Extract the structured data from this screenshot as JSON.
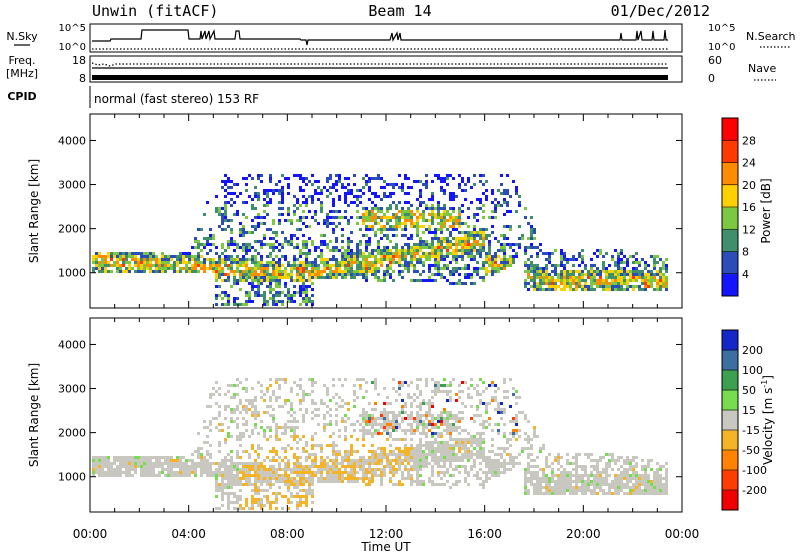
{
  "header": {
    "station": "Unwin (fitACF)",
    "beam": "Beam 14",
    "date": "01/Dec/2012"
  },
  "top_panel": {
    "nsky_label": "N.Sky",
    "nsearch_label": "N.Search",
    "left_ticks": [
      "10^5",
      "10^0"
    ],
    "right_ticks": [
      "10^5",
      "10^0"
    ],
    "freq_label_1": "Freq.",
    "freq_label_2": "[MHz]",
    "freq_ticks": [
      "18",
      "8"
    ],
    "nave_label": "Nave",
    "nave_ticks": [
      "60",
      "0"
    ],
    "cpid_label": "CPID",
    "cpid_value": "normal (fast stereo) 153 RF"
  },
  "chart_data": [
    {
      "type": "heatmap",
      "name": "power",
      "ylabel": "Slant Range [km]",
      "ylim": [
        200,
        4600
      ],
      "yticks": [
        "1000",
        "2000",
        "3000",
        "4000"
      ],
      "xlim": [
        "00:00",
        "24:00"
      ],
      "colorbar_label": "Power [dB]",
      "colorbar_ticks": [
        "4",
        "8",
        "12",
        "16",
        "20",
        "24",
        "28"
      ],
      "colors": [
        "#1414ff",
        "#2a4db8",
        "#3f8f6e",
        "#7cc840",
        "#ffd000",
        "#ff8c00",
        "#ff3a00",
        "#ff0000"
      ]
    },
    {
      "type": "heatmap",
      "name": "velocity",
      "ylabel": "Slant Range [km]",
      "ylim": [
        200,
        4600
      ],
      "yticks": [
        "1000",
        "2000",
        "3000",
        "4000"
      ],
      "xlabel": "Time UT",
      "xticks": [
        "00:00",
        "04:00",
        "08:00",
        "12:00",
        "16:00",
        "20:00",
        "00:00"
      ],
      "colorbar_label": "Velocity [m s",
      "colorbar_label_sup": "-1",
      "colorbar_label_end": "]",
      "colorbar_ticks": [
        "200",
        "100",
        "50",
        "15",
        "-15",
        "-50",
        "-100",
        "-200"
      ],
      "colors": [
        "#1428c8",
        "#3c6ea0",
        "#3ca050",
        "#78dc50",
        "#c8c8c0",
        "#f5b428",
        "#ff8200",
        "#ff3c00",
        "#f00000"
      ]
    }
  ]
}
